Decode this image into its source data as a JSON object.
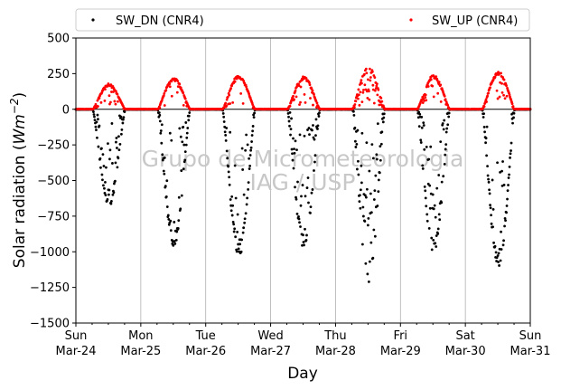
{
  "chart_data": {
    "type": "scatter",
    "title": "",
    "xlabel": "Day",
    "ylabel_parts": [
      "Solar radiation (",
      "Wm",
      "−2",
      ")"
    ],
    "ylim": [
      -1500,
      500
    ],
    "yticks": [
      500,
      250,
      0,
      -250,
      -500,
      -750,
      -1000,
      -1250,
      -1500
    ],
    "ytick_labels": [
      "500",
      "250",
      "0",
      "−250",
      "−500",
      "−750",
      "−1000",
      "−1250",
      "−1500"
    ],
    "xlim_days": [
      0,
      7
    ],
    "xticks": [
      {
        "day": 0,
        "line1": "Sun",
        "line2": "Mar-24"
      },
      {
        "day": 1,
        "line1": "Mon",
        "line2": "Mar-25"
      },
      {
        "day": 2,
        "line1": "Tue",
        "line2": "Mar-26"
      },
      {
        "day": 3,
        "line1": "Wed",
        "line2": "Mar-27"
      },
      {
        "day": 4,
        "line1": "Thu",
        "line2": "Mar-28"
      },
      {
        "day": 5,
        "line1": "Fri",
        "line2": "Mar-29"
      },
      {
        "day": 6,
        "line1": "Sat",
        "line2": "Mar-30"
      },
      {
        "day": 7,
        "line1": "Sun",
        "line2": "Mar-31"
      }
    ],
    "grid": "vertical",
    "legend_position": "top",
    "zero_line": true,
    "watermark": [
      "Grupo de Micrometeorologia",
      "IAG / USP"
    ],
    "series": [
      {
        "name": "SW_DN (CNR4)",
        "color": "#000000",
        "daily": [
          {
            "day": 0,
            "peak": -680,
            "variability": 0.55
          },
          {
            "day": 1,
            "peak": -960,
            "variability": 0.35
          },
          {
            "day": 2,
            "peak": -1040,
            "variability": 0.35
          },
          {
            "day": 3,
            "peak": -980,
            "variability": 0.45
          },
          {
            "day": 4,
            "peak": -1230,
            "variability": 0.8
          },
          {
            "day": 5,
            "peak": -1020,
            "variability": 0.65
          },
          {
            "day": 6,
            "peak": -1120,
            "variability": 0.45
          }
        ]
      },
      {
        "name": "SW_UP (CNR4)",
        "color": "#ff0000",
        "daily": [
          {
            "day": 0,
            "peak": 180,
            "variability": 0.3
          },
          {
            "day": 1,
            "peak": 220,
            "variability": 0.15
          },
          {
            "day": 2,
            "peak": 240,
            "variability": 0.15
          },
          {
            "day": 3,
            "peak": 230,
            "variability": 0.3
          },
          {
            "day": 4,
            "peak": 300,
            "variability": 0.7
          },
          {
            "day": 5,
            "peak": 240,
            "variability": 0.5
          },
          {
            "day": 6,
            "peak": 265,
            "variability": 0.3
          }
        ]
      }
    ]
  }
}
